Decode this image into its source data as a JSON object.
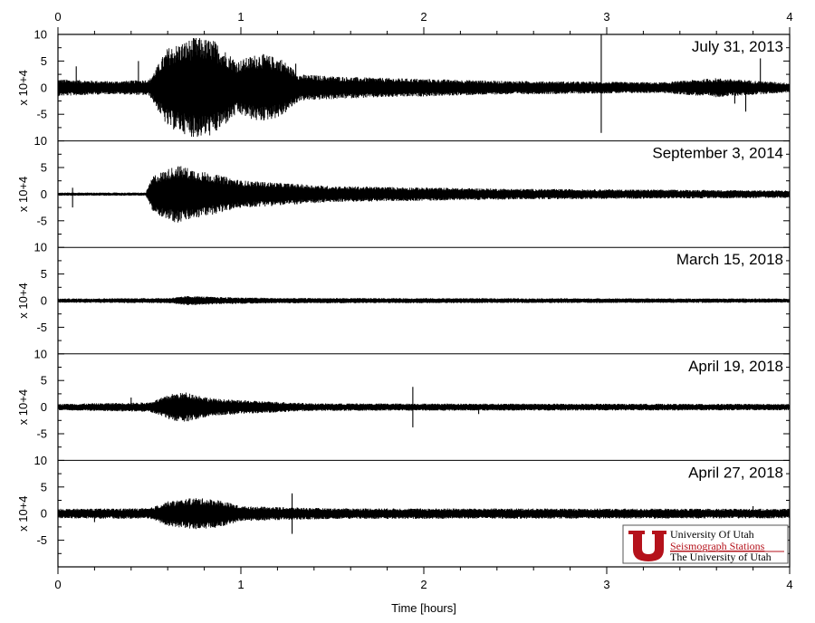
{
  "chart_data": {
    "type": "line",
    "xlabel": "Time [hours]",
    "x_ticks": [
      "0",
      "1",
      "2",
      "3",
      "4"
    ],
    "xlim": [
      0,
      4
    ],
    "ylabel": "x 10+4",
    "y_ticks": [
      "10",
      "5",
      "0",
      "-5"
    ],
    "ylim": [
      -10,
      10
    ],
    "panels": [
      {
        "date": "July 31, 2013",
        "baseline_amplitude": 1.0,
        "envelope": [
          {
            "t": 0.0,
            "a": 1.6
          },
          {
            "t": 0.3,
            "a": 1.2
          },
          {
            "t": 0.5,
            "a": 1.5
          },
          {
            "t": 0.6,
            "a": 7.5
          },
          {
            "t": 0.75,
            "a": 9.5
          },
          {
            "t": 0.85,
            "a": 9.0
          },
          {
            "t": 0.98,
            "a": 5.0
          },
          {
            "t": 1.1,
            "a": 6.5
          },
          {
            "t": 1.22,
            "a": 5.5
          },
          {
            "t": 1.32,
            "a": 2.5
          },
          {
            "t": 1.6,
            "a": 2.0
          },
          {
            "t": 2.4,
            "a": 1.3
          },
          {
            "t": 3.3,
            "a": 1.0
          },
          {
            "t": 3.6,
            "a": 1.8
          },
          {
            "t": 4.0,
            "a": 0.9
          }
        ],
        "spikes": [
          {
            "t": 0.1,
            "v": 4.0
          },
          {
            "t": 0.44,
            "v": 5.0
          },
          {
            "t": 1.3,
            "v": 4.5
          },
          {
            "t": 2.97,
            "v": 10.0
          },
          {
            "t": 2.97,
            "v": -8.5
          },
          {
            "t": 3.76,
            "v": -4.5
          },
          {
            "t": 3.84,
            "v": 5.5
          },
          {
            "t": 3.7,
            "v": -3.0
          }
        ]
      },
      {
        "date": "September 3, 2014",
        "baseline_amplitude": 0.4,
        "envelope": [
          {
            "t": 0.0,
            "a": 0.3
          },
          {
            "t": 0.48,
            "a": 0.3
          },
          {
            "t": 0.52,
            "a": 3.5
          },
          {
            "t": 0.65,
            "a": 5.5
          },
          {
            "t": 0.8,
            "a": 4.2
          },
          {
            "t": 1.0,
            "a": 2.6
          },
          {
            "t": 1.5,
            "a": 1.5
          },
          {
            "t": 2.5,
            "a": 1.0
          },
          {
            "t": 4.0,
            "a": 0.7
          }
        ],
        "spikes": [
          {
            "t": 0.08,
            "v": 1.2
          },
          {
            "t": 0.08,
            "v": -2.5
          }
        ]
      },
      {
        "date": "March 15, 2018",
        "baseline_amplitude": 0.4,
        "envelope": [
          {
            "t": 0.0,
            "a": 0.4
          },
          {
            "t": 0.6,
            "a": 0.5
          },
          {
            "t": 0.72,
            "a": 0.9
          },
          {
            "t": 0.85,
            "a": 0.7
          },
          {
            "t": 1.2,
            "a": 0.5
          },
          {
            "t": 4.0,
            "a": 0.4
          }
        ],
        "spikes": []
      },
      {
        "date": "April 19, 2018",
        "baseline_amplitude": 0.6,
        "envelope": [
          {
            "t": 0.0,
            "a": 0.6
          },
          {
            "t": 0.5,
            "a": 0.9
          },
          {
            "t": 0.62,
            "a": 2.5
          },
          {
            "t": 0.7,
            "a": 2.8
          },
          {
            "t": 0.85,
            "a": 1.6
          },
          {
            "t": 1.0,
            "a": 1.3
          },
          {
            "t": 1.4,
            "a": 0.7
          },
          {
            "t": 4.0,
            "a": 0.6
          }
        ],
        "spikes": [
          {
            "t": 0.4,
            "v": 1.8
          },
          {
            "t": 1.94,
            "v": 3.8
          },
          {
            "t": 1.94,
            "v": -3.8
          },
          {
            "t": 2.3,
            "v": -1.3
          }
        ]
      },
      {
        "date": "April 27, 2018",
        "baseline_amplitude": 0.9,
        "envelope": [
          {
            "t": 0.0,
            "a": 0.9
          },
          {
            "t": 0.5,
            "a": 1.0
          },
          {
            "t": 0.6,
            "a": 2.3
          },
          {
            "t": 0.75,
            "a": 3.0
          },
          {
            "t": 0.88,
            "a": 2.6
          },
          {
            "t": 1.0,
            "a": 1.4
          },
          {
            "t": 1.5,
            "a": 1.0
          },
          {
            "t": 4.0,
            "a": 0.9
          }
        ],
        "spikes": [
          {
            "t": 1.28,
            "v": 3.8
          },
          {
            "t": 1.28,
            "v": -3.8
          },
          {
            "t": 0.2,
            "v": -1.6
          },
          {
            "t": 3.8,
            "v": 1.4
          }
        ]
      }
    ]
  },
  "logo": {
    "line1": "University Of Utah",
    "line2": "Seismograph Stations",
    "line3": "The University of Utah",
    "letter": "U",
    "brand_color": "#b5121b"
  }
}
